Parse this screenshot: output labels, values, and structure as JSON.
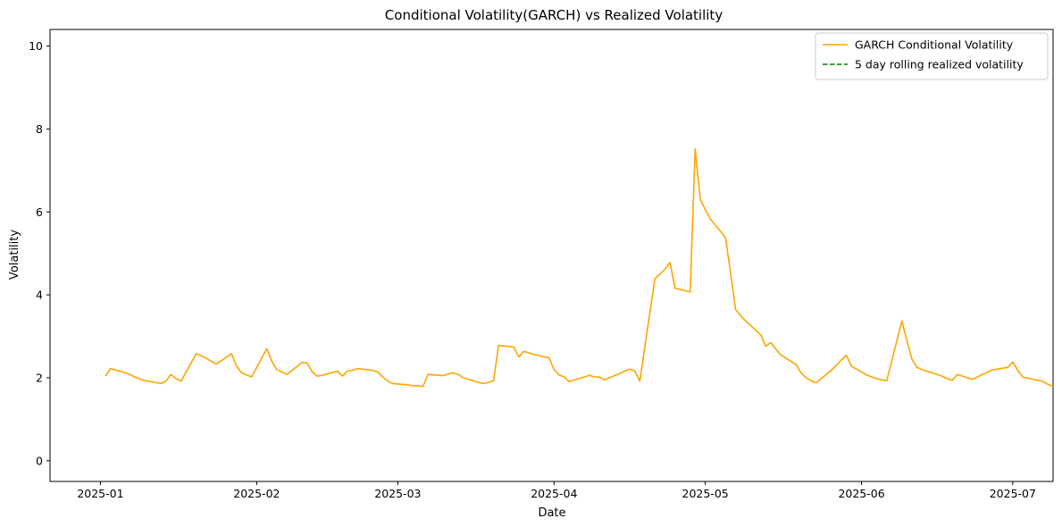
{
  "chart_data": {
    "type": "line",
    "title": "Conditional Volatility(GARCH) vs Realized Volatility",
    "xlabel": "Date",
    "ylabel": "Volatility",
    "xlim": [
      "2024-12-22",
      "2025-07-09"
    ],
    "ylim": [
      -0.5,
      10.4
    ],
    "x_ticks": [
      "2025-01-01",
      "2025-02-01",
      "2025-03-01",
      "2025-04-01",
      "2025-05-01",
      "2025-06-01",
      "2025-07-01"
    ],
    "x_tick_labels": [
      "2025-01",
      "2025-02",
      "2025-03",
      "2025-04",
      "2025-05",
      "2025-06",
      "2025-07"
    ],
    "y_ticks": [
      0,
      2,
      4,
      6,
      8,
      10
    ],
    "y_tick_labels": [
      "0",
      "2",
      "4",
      "6",
      "8",
      "10"
    ],
    "grid": false,
    "legend_position": "top-right",
    "series": [
      {
        "name": "GARCH Conditional Volatility",
        "color": "#ffa500",
        "style": "solid",
        "points": [
          [
            "2025-01-02",
            2.04
          ],
          [
            "2025-01-03",
            2.22
          ],
          [
            "2025-01-06",
            2.12
          ],
          [
            "2025-01-07",
            2.07
          ],
          [
            "2025-01-08",
            2.01
          ],
          [
            "2025-01-09",
            1.96
          ],
          [
            "2025-01-10",
            1.93
          ],
          [
            "2025-01-13",
            1.86
          ],
          [
            "2025-01-14",
            1.92
          ],
          [
            "2025-01-15",
            2.08
          ],
          [
            "2025-01-16",
            1.98
          ],
          [
            "2025-01-17",
            1.92
          ],
          [
            "2025-01-20",
            2.58
          ],
          [
            "2025-01-21",
            2.53
          ],
          [
            "2025-01-22",
            2.47
          ],
          [
            "2025-01-23",
            2.4
          ],
          [
            "2025-01-24",
            2.33
          ],
          [
            "2025-01-27",
            2.58
          ],
          [
            "2025-01-28",
            2.28
          ],
          [
            "2025-01-29",
            2.12
          ],
          [
            "2025-01-30",
            2.07
          ],
          [
            "2025-01-31",
            2.02
          ],
          [
            "2025-02-03",
            2.7
          ],
          [
            "2025-02-04",
            2.4
          ],
          [
            "2025-02-05",
            2.2
          ],
          [
            "2025-02-06",
            2.14
          ],
          [
            "2025-02-07",
            2.08
          ],
          [
            "2025-02-10",
            2.37
          ],
          [
            "2025-02-11",
            2.36
          ],
          [
            "2025-02-12",
            2.15
          ],
          [
            "2025-02-13",
            2.04
          ],
          [
            "2025-02-14",
            2.06
          ],
          [
            "2025-02-17",
            2.16
          ],
          [
            "2025-02-18",
            2.04
          ],
          [
            "2025-02-19",
            2.16
          ],
          [
            "2025-02-20",
            2.18
          ],
          [
            "2025-02-21",
            2.22
          ],
          [
            "2025-02-24",
            2.18
          ],
          [
            "2025-02-25",
            2.14
          ],
          [
            "2025-02-26",
            2.02
          ],
          [
            "2025-02-27",
            1.92
          ],
          [
            "2025-02-28",
            1.86
          ],
          [
            "2025-03-03",
            1.83
          ],
          [
            "2025-03-04",
            1.81
          ],
          [
            "2025-03-05",
            1.81
          ],
          [
            "2025-03-06",
            1.79
          ],
          [
            "2025-03-07",
            2.08
          ],
          [
            "2025-03-10",
            2.05
          ],
          [
            "2025-03-11",
            2.09
          ],
          [
            "2025-03-12",
            2.12
          ],
          [
            "2025-03-13",
            2.08
          ],
          [
            "2025-03-14",
            2.0
          ],
          [
            "2025-03-17",
            1.89
          ],
          [
            "2025-03-18",
            1.86
          ],
          [
            "2025-03-19",
            1.89
          ],
          [
            "2025-03-20",
            1.93
          ],
          [
            "2025-03-21",
            2.78
          ],
          [
            "2025-03-24",
            2.74
          ],
          [
            "2025-03-25",
            2.5
          ],
          [
            "2025-03-26",
            2.64
          ],
          [
            "2025-03-27",
            2.6
          ],
          [
            "2025-03-28",
            2.56
          ],
          [
            "2025-03-31",
            2.48
          ],
          [
            "2025-04-01",
            2.2
          ],
          [
            "2025-04-02",
            2.07
          ],
          [
            "2025-04-03",
            2.02
          ],
          [
            "2025-04-04",
            1.91
          ],
          [
            "2025-04-07",
            2.02
          ],
          [
            "2025-04-08",
            2.06
          ],
          [
            "2025-04-09",
            2.02
          ],
          [
            "2025-04-10",
            2.02
          ],
          [
            "2025-04-11",
            1.95
          ],
          [
            "2025-04-14",
            2.1
          ],
          [
            "2025-04-15",
            2.16
          ],
          [
            "2025-04-16",
            2.21
          ],
          [
            "2025-04-17",
            2.17
          ],
          [
            "2025-04-18",
            1.92
          ],
          [
            "2025-04-21",
            4.39
          ],
          [
            "2025-04-22",
            4.5
          ],
          [
            "2025-04-23",
            4.62
          ],
          [
            "2025-04-24",
            4.78
          ],
          [
            "2025-04-25",
            4.16
          ],
          [
            "2025-04-28",
            4.07
          ],
          [
            "2025-04-29",
            7.52
          ],
          [
            "2025-04-30",
            6.3
          ],
          [
            "2025-05-01",
            6.06
          ],
          [
            "2025-05-02",
            5.83
          ],
          [
            "2025-05-05",
            5.38
          ],
          [
            "2025-05-06",
            4.55
          ],
          [
            "2025-05-07",
            3.65
          ],
          [
            "2025-05-08",
            3.5
          ],
          [
            "2025-05-09",
            3.37
          ],
          [
            "2025-05-12",
            3.04
          ],
          [
            "2025-05-13",
            2.76
          ],
          [
            "2025-05-14",
            2.85
          ],
          [
            "2025-05-15",
            2.69
          ],
          [
            "2025-05-16",
            2.55
          ],
          [
            "2025-05-19",
            2.32
          ],
          [
            "2025-05-20",
            2.12
          ],
          [
            "2025-05-21",
            2.0
          ],
          [
            "2025-05-22",
            1.93
          ],
          [
            "2025-05-23",
            1.88
          ],
          [
            "2025-05-26",
            2.18
          ],
          [
            "2025-05-27",
            2.3
          ],
          [
            "2025-05-28",
            2.43
          ],
          [
            "2025-05-29",
            2.54
          ],
          [
            "2025-05-30",
            2.28
          ],
          [
            "2025-06-02",
            2.07
          ],
          [
            "2025-06-03",
            2.02
          ],
          [
            "2025-06-04",
            1.98
          ],
          [
            "2025-06-05",
            1.95
          ],
          [
            "2025-06-06",
            1.93
          ],
          [
            "2025-06-09",
            3.37
          ],
          [
            "2025-06-10",
            2.9
          ],
          [
            "2025-06-11",
            2.45
          ],
          [
            "2025-06-12",
            2.25
          ],
          [
            "2025-06-13",
            2.2
          ],
          [
            "2025-06-16",
            2.08
          ],
          [
            "2025-06-17",
            2.04
          ],
          [
            "2025-06-18",
            1.98
          ],
          [
            "2025-06-19",
            1.94
          ],
          [
            "2025-06-20",
            2.08
          ],
          [
            "2025-06-23",
            1.96
          ],
          [
            "2025-06-24",
            2.02
          ],
          [
            "2025-06-25",
            2.08
          ],
          [
            "2025-06-26",
            2.13
          ],
          [
            "2025-06-27",
            2.19
          ],
          [
            "2025-06-30",
            2.25
          ],
          [
            "2025-07-01",
            2.38
          ],
          [
            "2025-07-02",
            2.18
          ],
          [
            "2025-07-03",
            2.02
          ],
          [
            "2025-07-04",
            1.99
          ],
          [
            "2025-07-07",
            1.91
          ],
          [
            "2025-07-08",
            1.84
          ],
          [
            "2025-07-09",
            1.8
          ]
        ]
      },
      {
        "name": "5 day rolling realized volatility",
        "color": "#008000",
        "style": "dashed",
        "points": []
      }
    ]
  }
}
